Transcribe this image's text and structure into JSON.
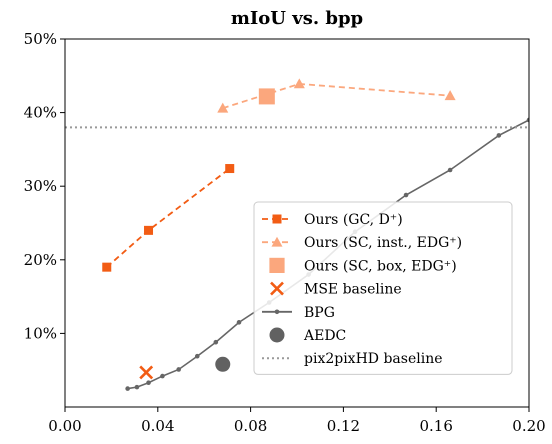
{
  "chart_data": {
    "type": "line",
    "title": "mIoU vs. bpp",
    "xlabel": "",
    "ylabel": "",
    "xlim": [
      0.0,
      0.2
    ],
    "ylim": [
      0,
      50
    ],
    "x_ticks": [
      0.0,
      0.04,
      0.08,
      0.12,
      0.16,
      0.2
    ],
    "x_tick_labels": [
      "0.00",
      "0.04",
      "0.08",
      "0.12",
      "0.16",
      "0.20"
    ],
    "y_ticks": [
      10,
      20,
      30,
      40,
      50
    ],
    "y_tick_labels": [
      "10%",
      "20%",
      "30%",
      "40%",
      "50%"
    ],
    "grid": false,
    "legend_position": "bottom-right",
    "series": [
      {
        "key": "gc",
        "name": "Ours (GC, D⁺)",
        "color": "#f25c14",
        "style": "dashed",
        "marker": "square",
        "x": [
          0.018,
          0.036,
          0.071
        ],
        "y": [
          19.0,
          24.0,
          32.4
        ]
      },
      {
        "key": "sc_inst",
        "name": "Ours (SC, inst., EDG⁺)",
        "color": "#fba77d",
        "style": "dashed",
        "marker": "triangle",
        "x": [
          0.068,
          0.101,
          0.166
        ],
        "y": [
          40.6,
          43.9,
          42.3
        ]
      },
      {
        "key": "sc_box",
        "name": "Ours (SC, box, EDG⁺)",
        "color": "#fba77d",
        "style": "none",
        "marker": "big-square",
        "x": [
          0.087
        ],
        "y": [
          42.2
        ]
      },
      {
        "key": "mse",
        "name": "MSE baseline",
        "color": "#f25c14",
        "style": "none",
        "marker": "x",
        "x": [
          0.035
        ],
        "y": [
          4.7
        ]
      },
      {
        "key": "bpg",
        "name": "BPG",
        "color": "#666666",
        "style": "solid",
        "marker": "dot",
        "x": [
          0.027,
          0.031,
          0.036,
          0.042,
          0.049,
          0.057,
          0.065,
          0.075,
          0.088,
          0.105,
          0.125,
          0.147,
          0.166,
          0.187,
          0.2
        ],
        "y": [
          2.5,
          2.7,
          3.3,
          4.2,
          5.1,
          6.9,
          8.8,
          11.5,
          14.2,
          18.0,
          23.8,
          28.8,
          32.2,
          36.9,
          39.0
        ]
      },
      {
        "key": "aedc",
        "name": "AEDC",
        "color": "#616161",
        "style": "none",
        "marker": "circle",
        "x": [
          0.068
        ],
        "y": [
          5.8
        ]
      },
      {
        "key": "pix2pix",
        "name": "pix2pixHD baseline",
        "color": "#999999",
        "style": "dotted",
        "marker": "none",
        "hline": 38.0
      }
    ]
  }
}
